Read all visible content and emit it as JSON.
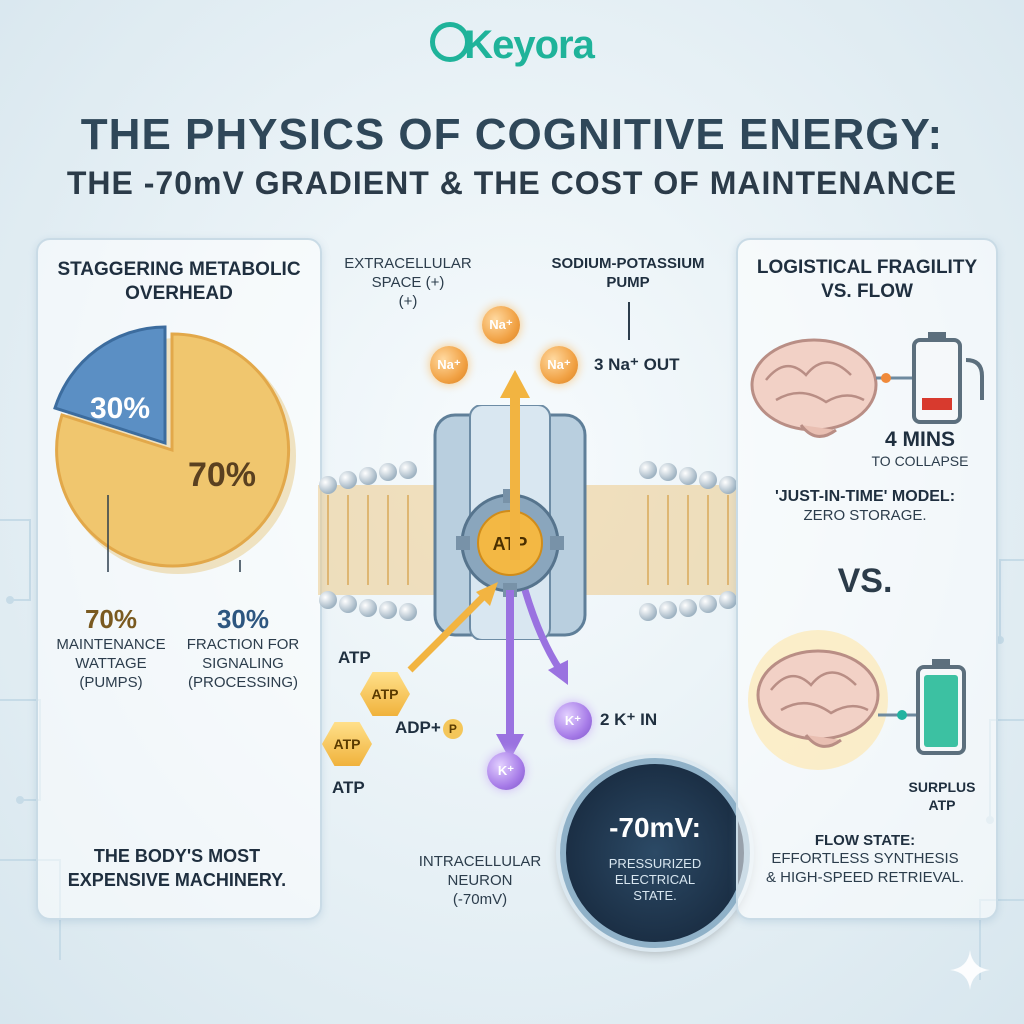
{
  "brand": {
    "logo": "Keyora"
  },
  "header": {
    "title": "THE PHYSICS OF COGNITIVE ENERGY:",
    "subtitle": "THE -70mV GRADIENT & THE COST OF MAINTENANCE"
  },
  "left_panel": {
    "heading_line1": "STAGGERING METABOLIC",
    "heading_line2": "OVERHEAD",
    "pie": {
      "slices": [
        {
          "label": "30%",
          "value": 30,
          "color": "#5b8fc4"
        },
        {
          "label": "70%",
          "value": 70,
          "color": "#f0c66e"
        }
      ]
    },
    "maintenance": {
      "value": "70%",
      "line1": "MAINTENANCE",
      "line2": "WATTAGE",
      "line3": "(PUMPS)"
    },
    "signaling": {
      "value": "30%",
      "line1": "FRACTION FOR",
      "line2": "SIGNALING",
      "line3": "(PROCESSING)"
    },
    "footer_line1": "THE BODY'S MOST",
    "footer_line2": "EXPENSIVE MACHINERY."
  },
  "center": {
    "extracellular_line1": "EXTRACELLULAR",
    "extracellular_line2": "SPACE (+)",
    "extracellular_line3": "(+)",
    "pump_line1": "SODIUM-POTASSIUM",
    "pump_line2": "PUMP",
    "na_ion": "Na⁺",
    "na_out": "3 Na⁺ OUT",
    "atp_core": "ATP",
    "atp_label_top": "ATP",
    "atp_hex1": "ATP",
    "atp_hex2": "ATP",
    "atp_label_bottom": "ATP",
    "adp": "ADP+",
    "phosphate": "P",
    "k_ion": "K⁺",
    "k_in": "2 K⁺ IN",
    "intracellular_line1": "INTRACELLULAR",
    "intracellular_line2": "NEURON",
    "intracellular_line3": "(-70mV)",
    "gauge_value": "-70mV:",
    "gauge_line1": "PRESSURIZED",
    "gauge_line2": "ELECTRICAL",
    "gauge_line3": "STATE."
  },
  "right_panel": {
    "heading_line1": "LOGISTICAL FRAGILITY",
    "heading_line2": "VS. FLOW",
    "collapse_time": "4 MINS",
    "collapse_label": "TO COLLAPSE",
    "model_line1": "'JUST-IN-TIME' MODEL:",
    "model_line2": "ZERO STORAGE.",
    "vs": "VS.",
    "surplus_line1": "SURPLUS",
    "surplus_line2": "ATP",
    "flow_title": "FLOW STATE:",
    "flow_line1": "EFFORTLESS SYNTHESIS",
    "flow_line2": "& HIGH-SPEED RETRIEVAL."
  },
  "colors": {
    "accent": "#1fb39a",
    "orange": "#f0a340",
    "purple": "#9a72e0",
    "blue": "#5b8fc4"
  }
}
